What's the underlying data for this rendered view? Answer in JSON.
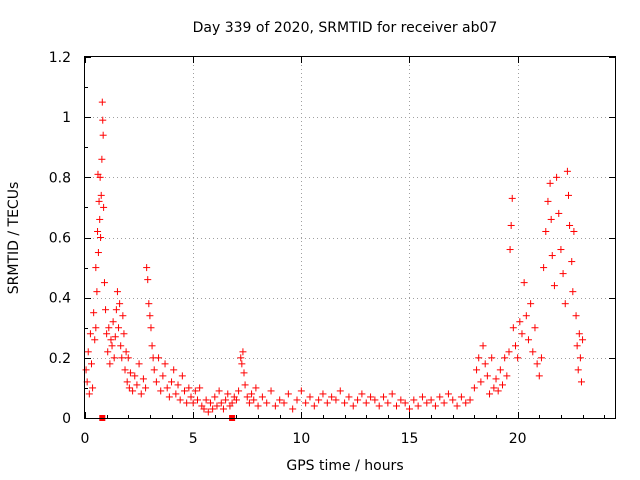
{
  "chart_data": {
    "type": "scatter",
    "title": "Day 339 of 2020, SRMTID for receiver ab07",
    "xlabel": "GPS time / hours",
    "ylabel": "SRMTID / TECUs",
    "xlim": [
      0,
      24.5
    ],
    "ylim": [
      0,
      1.2
    ],
    "x_ticks": [
      0,
      5,
      10,
      15,
      20
    ],
    "x_tick_labels": [
      "0",
      "5",
      "10",
      "15",
      "20"
    ],
    "y_ticks": [
      0,
      0.2,
      0.4,
      0.6,
      0.8,
      1.0,
      1.2
    ],
    "y_tick_labels": [
      "0",
      "0.2",
      "0.4",
      "0.6",
      "0.8",
      "1",
      "1.2"
    ],
    "grid": true,
    "legend": "none",
    "series": [
      {
        "name": "SRMTID",
        "color": "#ff0000",
        "marker": "plus",
        "points": [
          [
            0.05,
            0.16
          ],
          [
            0.1,
            0.12
          ],
          [
            0.15,
            0.22
          ],
          [
            0.2,
            0.08
          ],
          [
            0.25,
            0.28
          ],
          [
            0.3,
            0.18
          ],
          [
            0.35,
            0.1
          ],
          [
            0.4,
            0.35
          ],
          [
            0.45,
            0.26
          ],
          [
            0.5,
            0.3
          ],
          [
            0.5,
            0.5
          ],
          [
            0.55,
            0.42
          ],
          [
            0.58,
            0.62
          ],
          [
            0.6,
            0.81
          ],
          [
            0.62,
            0.55
          ],
          [
            0.65,
            0.72
          ],
          [
            0.68,
            0.66
          ],
          [
            0.7,
            0.8
          ],
          [
            0.72,
            0.6
          ],
          [
            0.75,
            0.74
          ],
          [
            0.78,
            0.86
          ],
          [
            0.8,
            1.05
          ],
          [
            0.82,
            0.99
          ],
          [
            0.84,
            0.94
          ],
          [
            0.86,
            0.7
          ],
          [
            0.9,
            0.45
          ],
          [
            0.95,
            0.36
          ],
          [
            1.0,
            0.28
          ],
          [
            1.05,
            0.22
          ],
          [
            1.1,
            0.3
          ],
          [
            1.15,
            0.18
          ],
          [
            1.2,
            0.26
          ],
          [
            1.25,
            0.24
          ],
          [
            1.3,
            0.32
          ],
          [
            1.35,
            0.2
          ],
          [
            1.4,
            0.27
          ],
          [
            1.45,
            0.36
          ],
          [
            1.5,
            0.42
          ],
          [
            1.55,
            0.3
          ],
          [
            1.6,
            0.38
          ],
          [
            1.65,
            0.24
          ],
          [
            1.7,
            0.2
          ],
          [
            1.75,
            0.34
          ],
          [
            1.8,
            0.28
          ],
          [
            1.85,
            0.16
          ],
          [
            1.9,
            0.22
          ],
          [
            1.95,
            0.12
          ],
          [
            2.0,
            0.2
          ],
          [
            2.05,
            0.1
          ],
          [
            2.1,
            0.15
          ],
          [
            2.2,
            0.09
          ],
          [
            2.3,
            0.14
          ],
          [
            2.4,
            0.11
          ],
          [
            2.5,
            0.18
          ],
          [
            2.6,
            0.08
          ],
          [
            2.7,
            0.13
          ],
          [
            2.8,
            0.1
          ],
          [
            2.85,
            0.5
          ],
          [
            2.9,
            0.46
          ],
          [
            2.95,
            0.38
          ],
          [
            3.0,
            0.34
          ],
          [
            3.05,
            0.3
          ],
          [
            3.1,
            0.24
          ],
          [
            3.15,
            0.2
          ],
          [
            3.2,
            0.16
          ],
          [
            3.3,
            0.12
          ],
          [
            3.4,
            0.2
          ],
          [
            3.5,
            0.09
          ],
          [
            3.6,
            0.14
          ],
          [
            3.7,
            0.18
          ],
          [
            3.8,
            0.1
          ],
          [
            3.9,
            0.07
          ],
          [
            4.0,
            0.12
          ],
          [
            4.1,
            0.16
          ],
          [
            4.2,
            0.08
          ],
          [
            4.3,
            0.11
          ],
          [
            4.4,
            0.06
          ],
          [
            4.5,
            0.14
          ],
          [
            4.6,
            0.09
          ],
          [
            4.7,
            0.05
          ],
          [
            4.8,
            0.1
          ],
          [
            4.9,
            0.07
          ],
          [
            5.0,
            0.05
          ],
          [
            5.1,
            0.09
          ],
          [
            5.2,
            0.06
          ],
          [
            5.3,
            0.1
          ],
          [
            5.4,
            0.04
          ],
          [
            5.5,
            0.03
          ],
          [
            5.6,
            0.06
          ],
          [
            5.7,
            0.02
          ],
          [
            5.8,
            0.05
          ],
          [
            5.9,
            0.03
          ],
          [
            6.0,
            0.07
          ],
          [
            6.1,
            0.04
          ],
          [
            6.2,
            0.09
          ],
          [
            6.3,
            0.05
          ],
          [
            6.4,
            0.03
          ],
          [
            6.5,
            0.06
          ],
          [
            6.6,
            0.08
          ],
          [
            6.7,
            0.04
          ],
          [
            6.8,
            0.05
          ],
          [
            6.9,
            0.07
          ],
          [
            7.0,
            0.06
          ],
          [
            7.1,
            0.09
          ],
          [
            7.2,
            0.2
          ],
          [
            7.25,
            0.18
          ],
          [
            7.3,
            0.22
          ],
          [
            7.35,
            0.15
          ],
          [
            7.4,
            0.11
          ],
          [
            7.5,
            0.07
          ],
          [
            7.6,
            0.05
          ],
          [
            7.7,
            0.08
          ],
          [
            7.8,
            0.06
          ],
          [
            7.9,
            0.1
          ],
          [
            8.0,
            0.04
          ],
          [
            8.2,
            0.07
          ],
          [
            8.4,
            0.05
          ],
          [
            8.6,
            0.09
          ],
          [
            8.8,
            0.04
          ],
          [
            9.0,
            0.06
          ],
          [
            9.2,
            0.05
          ],
          [
            9.4,
            0.08
          ],
          [
            9.6,
            0.03
          ],
          [
            9.8,
            0.06
          ],
          [
            10.0,
            0.09
          ],
          [
            10.2,
            0.05
          ],
          [
            10.4,
            0.07
          ],
          [
            10.6,
            0.04
          ],
          [
            10.8,
            0.06
          ],
          [
            11.0,
            0.08
          ],
          [
            11.2,
            0.05
          ],
          [
            11.4,
            0.07
          ],
          [
            11.6,
            0.06
          ],
          [
            11.8,
            0.09
          ],
          [
            12.0,
            0.05
          ],
          [
            12.2,
            0.07
          ],
          [
            12.4,
            0.04
          ],
          [
            12.6,
            0.06
          ],
          [
            12.8,
            0.08
          ],
          [
            13.0,
            0.05
          ],
          [
            13.2,
            0.07
          ],
          [
            13.4,
            0.06
          ],
          [
            13.6,
            0.04
          ],
          [
            13.8,
            0.07
          ],
          [
            14.0,
            0.05
          ],
          [
            14.2,
            0.08
          ],
          [
            14.4,
            0.04
          ],
          [
            14.6,
            0.06
          ],
          [
            14.8,
            0.05
          ],
          [
            15.0,
            0.03
          ],
          [
            15.2,
            0.06
          ],
          [
            15.4,
            0.04
          ],
          [
            15.6,
            0.07
          ],
          [
            15.8,
            0.05
          ],
          [
            16.0,
            0.06
          ],
          [
            16.2,
            0.04
          ],
          [
            16.4,
            0.07
          ],
          [
            16.6,
            0.05
          ],
          [
            16.8,
            0.08
          ],
          [
            17.0,
            0.06
          ],
          [
            17.2,
            0.04
          ],
          [
            17.4,
            0.07
          ],
          [
            17.6,
            0.05
          ],
          [
            17.8,
            0.06
          ],
          [
            18.0,
            0.1
          ],
          [
            18.1,
            0.16
          ],
          [
            18.2,
            0.2
          ],
          [
            18.3,
            0.12
          ],
          [
            18.4,
            0.24
          ],
          [
            18.5,
            0.18
          ],
          [
            18.6,
            0.14
          ],
          [
            18.7,
            0.08
          ],
          [
            18.8,
            0.2
          ],
          [
            18.9,
            0.1
          ],
          [
            19.0,
            0.13
          ],
          [
            19.1,
            0.09
          ],
          [
            19.2,
            0.16
          ],
          [
            19.3,
            0.11
          ],
          [
            19.4,
            0.2
          ],
          [
            19.5,
            0.14
          ],
          [
            19.6,
            0.22
          ],
          [
            19.65,
            0.56
          ],
          [
            19.7,
            0.64
          ],
          [
            19.75,
            0.73
          ],
          [
            19.8,
            0.3
          ],
          [
            19.9,
            0.24
          ],
          [
            20.0,
            0.2
          ],
          [
            20.1,
            0.32
          ],
          [
            20.2,
            0.28
          ],
          [
            20.3,
            0.45
          ],
          [
            20.4,
            0.34
          ],
          [
            20.5,
            0.26
          ],
          [
            20.6,
            0.38
          ],
          [
            20.7,
            0.22
          ],
          [
            20.8,
            0.3
          ],
          [
            20.9,
            0.18
          ],
          [
            21.0,
            0.14
          ],
          [
            21.1,
            0.2
          ],
          [
            21.2,
            0.5
          ],
          [
            21.3,
            0.62
          ],
          [
            21.4,
            0.72
          ],
          [
            21.5,
            0.78
          ],
          [
            21.55,
            0.66
          ],
          [
            21.6,
            0.54
          ],
          [
            21.7,
            0.44
          ],
          [
            21.8,
            0.8
          ],
          [
            21.9,
            0.68
          ],
          [
            22.0,
            0.56
          ],
          [
            22.1,
            0.48
          ],
          [
            22.2,
            0.38
          ],
          [
            22.3,
            0.82
          ],
          [
            22.35,
            0.74
          ],
          [
            22.4,
            0.64
          ],
          [
            22.5,
            0.52
          ],
          [
            22.55,
            0.42
          ],
          [
            22.6,
            0.62
          ],
          [
            22.7,
            0.34
          ],
          [
            22.75,
            0.24
          ],
          [
            22.8,
            0.16
          ],
          [
            22.85,
            0.28
          ],
          [
            22.9,
            0.2
          ],
          [
            22.95,
            0.12
          ],
          [
            23.0,
            0.26
          ]
        ],
        "squares": [
          [
            0.8,
            0.0
          ],
          [
            6.8,
            0.0
          ]
        ]
      }
    ]
  }
}
